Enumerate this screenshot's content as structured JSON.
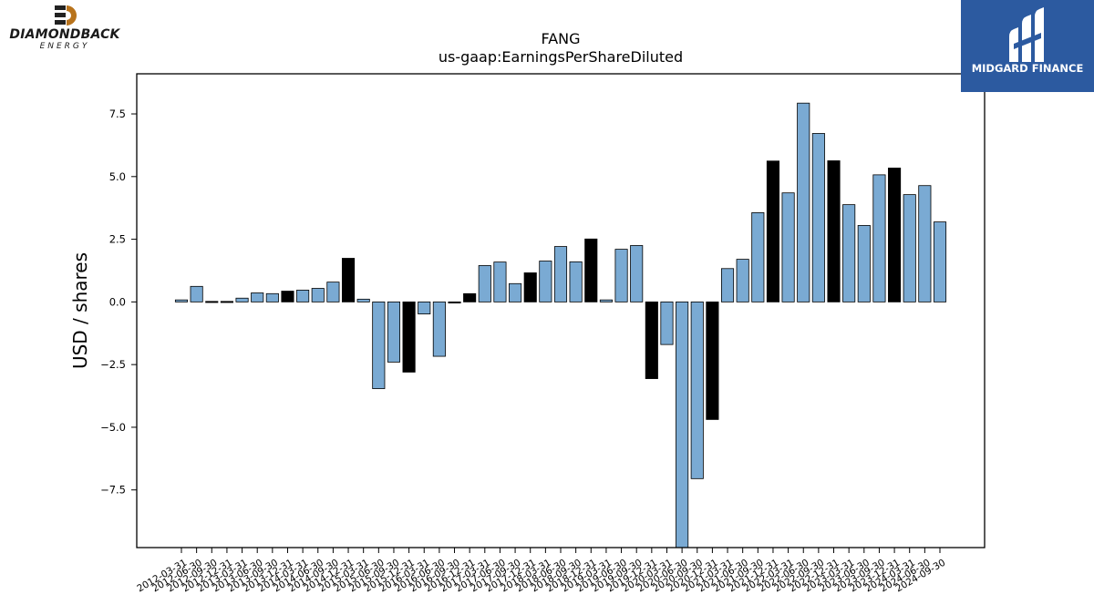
{
  "logos": {
    "left_brand": "DIAMONDBACK",
    "left_sub": "ENERGY",
    "right_brand": "MIDGARD FINANCE",
    "right_bg": "#2c5aa0"
  },
  "chart_data": {
    "type": "bar",
    "title": "FANG",
    "subtitle": "us-gaap:EarningsPerShareDiluted",
    "xlabel": "",
    "ylabel": "USD / shares",
    "ylim": [
      -9.8,
      9.1
    ],
    "yticks": [
      7.5,
      5.0,
      2.5,
      0.0,
      -2.5,
      -5.0,
      -7.5
    ],
    "ytick_labels": [
      "7.5",
      "5.0",
      "2.5",
      "0.0",
      "−2.5",
      "−5.0",
      "−7.5"
    ],
    "grid": false,
    "colors": {
      "quarterly": "#7aaad3",
      "annual": "#000000",
      "edge": "#000000"
    },
    "bars": [
      {
        "date": "2012-03-31",
        "value": 0.08,
        "annual": false
      },
      {
        "date": "2012-06-30",
        "value": 0.62,
        "annual": false
      },
      {
        "date": "2012-09-30",
        "value": 0.02,
        "annual": true
      },
      {
        "date": "2012-12-31",
        "value": 0.02,
        "annual": true
      },
      {
        "date": "2013-03-31",
        "value": 0.15,
        "annual": false
      },
      {
        "date": "2013-06-30",
        "value": 0.36,
        "annual": false
      },
      {
        "date": "2013-09-30",
        "value": 0.33,
        "annual": false
      },
      {
        "date": "2013-12-31",
        "value": 0.43,
        "annual": true
      },
      {
        "date": "2014-03-31",
        "value": 0.47,
        "annual": false
      },
      {
        "date": "2014-06-30",
        "value": 0.54,
        "annual": false
      },
      {
        "date": "2014-09-30",
        "value": 0.79,
        "annual": false
      },
      {
        "date": "2014-12-31",
        "value": 1.74,
        "annual": true
      },
      {
        "date": "2015-03-31",
        "value": 0.11,
        "annual": false
      },
      {
        "date": "2015-06-30",
        "value": -3.46,
        "annual": false
      },
      {
        "date": "2015-09-30",
        "value": -2.4,
        "annual": false
      },
      {
        "date": "2015-12-31",
        "value": -2.8,
        "annual": true
      },
      {
        "date": "2016-03-31",
        "value": -0.48,
        "annual": false
      },
      {
        "date": "2016-06-30",
        "value": -2.17,
        "annual": false
      },
      {
        "date": "2016-09-30",
        "value": -0.02,
        "annual": true
      },
      {
        "date": "2016-12-31",
        "value": 0.33,
        "annual": true
      },
      {
        "date": "2017-03-31",
        "value": 1.45,
        "annual": false
      },
      {
        "date": "2017-06-30",
        "value": 1.59,
        "annual": false
      },
      {
        "date": "2017-09-30",
        "value": 0.73,
        "annual": false
      },
      {
        "date": "2017-12-31",
        "value": 1.16,
        "annual": true
      },
      {
        "date": "2018-03-31",
        "value": 1.63,
        "annual": false
      },
      {
        "date": "2018-06-30",
        "value": 2.21,
        "annual": false
      },
      {
        "date": "2018-09-30",
        "value": 1.6,
        "annual": false
      },
      {
        "date": "2018-12-31",
        "value": 2.51,
        "annual": true
      },
      {
        "date": "2019-03-31",
        "value": 0.08,
        "annual": false
      },
      {
        "date": "2019-06-30",
        "value": 2.1,
        "annual": false
      },
      {
        "date": "2019-09-30",
        "value": 2.25,
        "annual": false
      },
      {
        "date": "2019-12-31",
        "value": -3.06,
        "annual": true
      },
      {
        "date": "2020-03-31",
        "value": -1.7,
        "annual": false
      },
      {
        "date": "2020-06-30",
        "value": -9.8,
        "annual": false
      },
      {
        "date": "2020-09-30",
        "value": -7.05,
        "annual": false
      },
      {
        "date": "2020-12-31",
        "value": -4.69,
        "annual": true
      },
      {
        "date": "2021-03-31",
        "value": 1.33,
        "annual": false
      },
      {
        "date": "2021-06-30",
        "value": 1.7,
        "annual": false
      },
      {
        "date": "2021-09-30",
        "value": 3.56,
        "annual": false
      },
      {
        "date": "2021-12-31",
        "value": 5.62,
        "annual": true
      },
      {
        "date": "2022-03-31",
        "value": 4.35,
        "annual": false
      },
      {
        "date": "2022-06-30",
        "value": 7.93,
        "annual": false
      },
      {
        "date": "2022-09-30",
        "value": 6.72,
        "annual": false
      },
      {
        "date": "2022-12-31",
        "value": 5.63,
        "annual": true
      },
      {
        "date": "2023-03-31",
        "value": 3.88,
        "annual": false
      },
      {
        "date": "2023-06-30",
        "value": 3.05,
        "annual": false
      },
      {
        "date": "2023-09-30",
        "value": 5.07,
        "annual": false
      },
      {
        "date": "2023-12-31",
        "value": 5.34,
        "annual": true
      },
      {
        "date": "2024-03-31",
        "value": 4.28,
        "annual": false
      },
      {
        "date": "2024-06-30",
        "value": 4.64,
        "annual": false
      },
      {
        "date": "2024-09-30",
        "value": 3.19,
        "annual": false
      }
    ]
  }
}
